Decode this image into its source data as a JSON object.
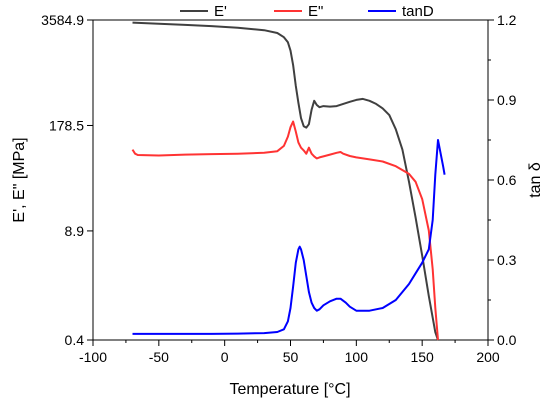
{
  "chart_data": {
    "type": "line",
    "xlabel": "Temperature [°C]",
    "ylabel_left": "E', E\" [MPa]",
    "ylabel_right": "tan δ",
    "xlim": [
      -100,
      200
    ],
    "ylim_left_log": [
      0.4,
      3584.9
    ],
    "ylim_right": [
      0.0,
      1.2
    ],
    "xticks": [
      -100,
      -50,
      0,
      50,
      100,
      150,
      200
    ],
    "yticks_left": [
      {
        "value": 0.4,
        "label": "0.4"
      },
      {
        "value": 8.9,
        "label": "8.9"
      },
      {
        "value": 178.5,
        "label": "178.5"
      },
      {
        "value": 3584.9,
        "label": "3584.9"
      }
    ],
    "yticks_right": [
      0.0,
      0.3,
      0.6,
      0.9,
      1.2
    ],
    "left_axis_scale": "log",
    "legend_placement": "top-center",
    "grid": false,
    "series": [
      {
        "name": "E'",
        "axis": "left",
        "color": "#404040",
        "points": [
          [
            -70,
            3327
          ],
          [
            -50,
            3230
          ],
          [
            -30,
            3120
          ],
          [
            -10,
            3010
          ],
          [
            10,
            2880
          ],
          [
            30,
            2680
          ],
          [
            40,
            2480
          ],
          [
            45,
            2200
          ],
          [
            48,
            1900
          ],
          [
            50,
            1500
          ],
          [
            52,
            1000
          ],
          [
            54,
            550
          ],
          [
            56,
            340
          ],
          [
            58,
            220
          ],
          [
            60,
            175
          ],
          [
            62,
            168
          ],
          [
            64,
            185
          ],
          [
            66,
            280
          ],
          [
            68,
            360
          ],
          [
            70,
            320
          ],
          [
            72,
            300
          ],
          [
            75,
            310
          ],
          [
            80,
            305
          ],
          [
            85,
            310
          ],
          [
            90,
            330
          ],
          [
            95,
            350
          ],
          [
            100,
            370
          ],
          [
            105,
            380
          ],
          [
            110,
            360
          ],
          [
            115,
            330
          ],
          [
            120,
            290
          ],
          [
            125,
            240
          ],
          [
            130,
            160
          ],
          [
            135,
            90
          ],
          [
            140,
            36
          ],
          [
            145,
            13
          ],
          [
            150,
            4.4
          ],
          [
            155,
            1.4
          ],
          [
            160,
            0.5
          ],
          [
            162,
            0.4
          ]
        ]
      },
      {
        "name": "E\"",
        "axis": "left",
        "color": "#ff3333",
        "points": [
          [
            -70,
            90
          ],
          [
            -68,
            80
          ],
          [
            -66,
            77
          ],
          [
            -50,
            76
          ],
          [
            -30,
            78
          ],
          [
            -10,
            79
          ],
          [
            10,
            80
          ],
          [
            30,
            82
          ],
          [
            40,
            86
          ],
          [
            45,
            100
          ],
          [
            48,
            130
          ],
          [
            50,
            170
          ],
          [
            52,
            200
          ],
          [
            54,
            150
          ],
          [
            56,
            110
          ],
          [
            58,
            95
          ],
          [
            60,
            88
          ],
          [
            62,
            80
          ],
          [
            64,
            95
          ],
          [
            66,
            80
          ],
          [
            68,
            74
          ],
          [
            70,
            70
          ],
          [
            72,
            72
          ],
          [
            75,
            74
          ],
          [
            80,
            78
          ],
          [
            85,
            82
          ],
          [
            88,
            84
          ],
          [
            90,
            80
          ],
          [
            95,
            75
          ],
          [
            100,
            72
          ],
          [
            110,
            68
          ],
          [
            120,
            64
          ],
          [
            130,
            56
          ],
          [
            140,
            45
          ],
          [
            145,
            36
          ],
          [
            150,
            22
          ],
          [
            155,
            9
          ],
          [
            158,
            3
          ],
          [
            160,
            1
          ],
          [
            162,
            0.4
          ]
        ]
      },
      {
        "name": "tanD",
        "axis": "right",
        "color": "#0000ff",
        "points": [
          [
            -70,
            0.023
          ],
          [
            -50,
            0.023
          ],
          [
            -30,
            0.023
          ],
          [
            -10,
            0.023
          ],
          [
            10,
            0.024
          ],
          [
            30,
            0.026
          ],
          [
            40,
            0.03
          ],
          [
            45,
            0.04
          ],
          [
            48,
            0.07
          ],
          [
            50,
            0.12
          ],
          [
            52,
            0.2
          ],
          [
            54,
            0.29
          ],
          [
            56,
            0.34
          ],
          [
            57,
            0.35
          ],
          [
            58,
            0.34
          ],
          [
            60,
            0.3
          ],
          [
            62,
            0.24
          ],
          [
            64,
            0.18
          ],
          [
            66,
            0.14
          ],
          [
            68,
            0.12
          ],
          [
            70,
            0.11
          ],
          [
            72,
            0.115
          ],
          [
            75,
            0.13
          ],
          [
            80,
            0.145
          ],
          [
            85,
            0.155
          ],
          [
            88,
            0.155
          ],
          [
            92,
            0.14
          ],
          [
            95,
            0.125
          ],
          [
            100,
            0.11
          ],
          [
            110,
            0.11
          ],
          [
            120,
            0.12
          ],
          [
            130,
            0.15
          ],
          [
            135,
            0.18
          ],
          [
            140,
            0.21
          ],
          [
            145,
            0.25
          ],
          [
            150,
            0.29
          ],
          [
            155,
            0.34
          ],
          [
            158,
            0.45
          ],
          [
            160,
            0.62
          ],
          [
            162,
            0.75
          ],
          [
            164,
            0.7
          ],
          [
            166,
            0.65
          ],
          [
            167,
            0.62
          ]
        ]
      }
    ]
  }
}
